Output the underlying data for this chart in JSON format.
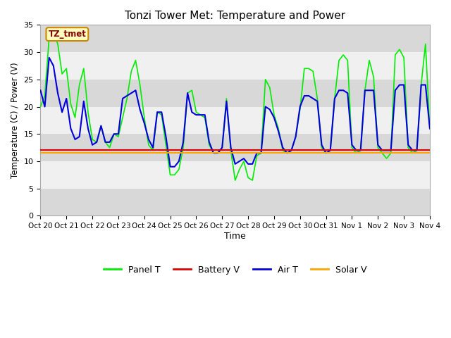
{
  "title": "Tonzi Tower Met: Temperature and Power",
  "xlabel": "Time",
  "ylabel": "Temperature (C) / Power (V)",
  "ylim": [
    0,
    35
  ],
  "yticks": [
    0,
    5,
    10,
    15,
    20,
    25,
    30,
    35
  ],
  "xtick_labels": [
    "Oct 20",
    "Oct 21",
    "Oct 22",
    "Oct 23",
    "Oct 24",
    "Oct 25",
    "Oct 26",
    "Oct 27",
    "Oct 28",
    "Oct 29",
    "Oct 30",
    "Oct 31",
    "Nov 1",
    "Nov 2",
    "Nov 3",
    "Nov 4"
  ],
  "annotation_text": "TZ_tmet",
  "annotation_box_facecolor": "#FFFFC0",
  "annotation_box_edgecolor": "#CC8800",
  "annotation_text_color": "#8B0000",
  "plot_bg_color": "#E8E8E8",
  "fig_bg_color": "#FFFFFF",
  "band_color_dark": "#D8D8D8",
  "band_color_light": "#F0F0F0",
  "line_colors": {
    "panel_t": "#00EE00",
    "battery_v": "#DD0000",
    "air_t": "#0000DD",
    "solar_v": "#FFA500"
  },
  "panel_t": [
    20.0,
    22.0,
    32.5,
    33.5,
    31.5,
    26.0,
    27.0,
    20.5,
    18.0,
    24.0,
    27.0,
    19.0,
    14.0,
    13.5,
    16.5,
    13.5,
    12.5,
    15.0,
    14.5,
    18.0,
    21.5,
    26.5,
    28.5,
    24.0,
    18.0,
    13.0,
    12.0,
    19.0,
    18.5,
    13.0,
    7.5,
    7.5,
    8.5,
    12.5,
    22.5,
    23.0,
    19.0,
    18.5,
    18.0,
    13.0,
    11.5,
    11.5,
    12.5,
    21.5,
    12.0,
    6.5,
    8.5,
    10.0,
    7.0,
    6.5,
    11.0,
    11.5,
    25.0,
    23.5,
    18.5,
    16.0,
    12.0,
    11.5,
    12.0,
    14.5,
    19.5,
    27.0,
    27.0,
    26.5,
    21.5,
    12.5,
    11.5,
    12.0,
    21.5,
    28.5,
    29.5,
    28.5,
    12.5,
    11.5,
    12.0,
    23.0,
    28.5,
    25.5,
    12.5,
    11.5,
    10.5,
    11.5,
    29.5,
    30.5,
    29.0,
    12.5,
    11.5,
    12.0,
    24.0,
    31.5,
    16.0
  ],
  "air_t": [
    23.0,
    20.0,
    29.0,
    27.5,
    22.5,
    19.0,
    21.5,
    16.0,
    14.0,
    14.5,
    21.0,
    16.0,
    13.0,
    13.5,
    16.5,
    13.5,
    13.5,
    15.0,
    15.0,
    21.5,
    22.0,
    22.5,
    23.0,
    19.5,
    17.0,
    14.0,
    12.5,
    19.0,
    19.0,
    14.5,
    9.0,
    9.0,
    10.0,
    13.5,
    22.5,
    19.0,
    18.5,
    18.5,
    18.5,
    13.5,
    11.5,
    11.5,
    12.5,
    21.0,
    12.5,
    9.5,
    10.0,
    10.5,
    9.5,
    9.5,
    11.5,
    11.5,
    20.0,
    19.5,
    18.0,
    15.5,
    12.5,
    11.5,
    12.0,
    14.5,
    20.0,
    22.0,
    22.0,
    21.5,
    21.0,
    13.0,
    11.5,
    12.0,
    21.5,
    23.0,
    23.0,
    22.5,
    13.0,
    12.0,
    12.0,
    23.0,
    23.0,
    23.0,
    13.0,
    12.0,
    12.0,
    12.0,
    23.0,
    24.0,
    24.0,
    13.0,
    12.0,
    12.0,
    24.0,
    24.0,
    16.0
  ],
  "battery_v": [
    12.0,
    12.0,
    12.0,
    12.0,
    12.0,
    12.0,
    12.0,
    12.0,
    12.0,
    12.0,
    12.0,
    12.0,
    12.0,
    12.0,
    12.0,
    12.0,
    12.0,
    12.0,
    12.0,
    12.0,
    12.0,
    12.0,
    12.0,
    12.0,
    12.0,
    12.0,
    12.0,
    12.0,
    12.0,
    12.0,
    12.0,
    12.0,
    12.0,
    12.0,
    12.0,
    12.0,
    12.0,
    12.0,
    12.0,
    12.0,
    12.0,
    12.0,
    12.0,
    12.0,
    12.0,
    12.0,
    12.0,
    12.0,
    12.0,
    12.0,
    12.0,
    12.0,
    12.0,
    12.0,
    12.0,
    12.0,
    12.0,
    12.0,
    12.0,
    12.0,
    12.0,
    12.0,
    12.0,
    12.0,
    12.0,
    12.0,
    12.0,
    12.0,
    12.0,
    12.0,
    12.0,
    12.0,
    12.0,
    12.0,
    12.0,
    12.0,
    12.0,
    12.0,
    12.0,
    12.0,
    12.0,
    12.0,
    12.0,
    12.0,
    12.0,
    12.0,
    12.0,
    12.0,
    12.0,
    12.0,
    12.0
  ],
  "solar_v": [
    11.5,
    11.5,
    11.5,
    11.5,
    11.5,
    11.5,
    11.5,
    11.5,
    11.5,
    11.5,
    11.5,
    11.5,
    11.5,
    11.5,
    11.5,
    11.5,
    11.5,
    11.5,
    11.5,
    11.5,
    11.5,
    11.5,
    11.5,
    11.5,
    11.5,
    11.5,
    11.5,
    11.5,
    11.5,
    11.5,
    11.5,
    11.5,
    11.5,
    11.5,
    11.5,
    11.5,
    11.5,
    11.5,
    11.5,
    11.5,
    11.5,
    11.5,
    11.5,
    11.5,
    11.5,
    11.5,
    11.5,
    11.5,
    11.5,
    11.5,
    11.5,
    11.5,
    11.5,
    11.5,
    11.5,
    11.5,
    11.5,
    11.5,
    11.5,
    11.5,
    11.5,
    11.5,
    11.5,
    11.5,
    11.5,
    11.5,
    11.5,
    11.5,
    11.5,
    11.5,
    11.5,
    11.5,
    11.5,
    11.5,
    11.5,
    11.5,
    11.5,
    11.5,
    11.5,
    11.5,
    11.5,
    11.5,
    11.5,
    11.5,
    11.5,
    11.5,
    11.5,
    11.5,
    11.5,
    11.5,
    11.5
  ]
}
